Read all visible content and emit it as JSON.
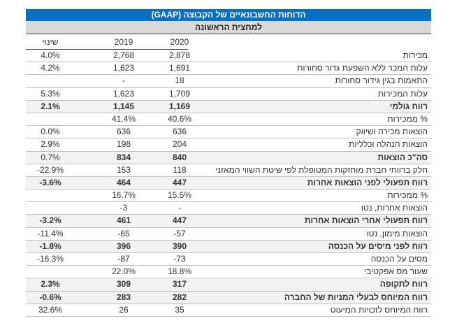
{
  "title": "הדוחות החשבונאיים של הקבוצה (GAAP)",
  "subtitle": "למחצית הראשונה",
  "columns": {
    "change": "שינוי",
    "y2019": "2019",
    "y2020": "2020"
  },
  "rows": [
    {
      "label": "מכירות",
      "y2020": "2,878",
      "y2019": "2,768",
      "change": "4.0%",
      "bold": false
    },
    {
      "label": "עלות המכר ללא השפעת גדור סחורות",
      "y2020": "1,691",
      "y2019": "1,623",
      "change": "4.2%",
      "bold": false
    },
    {
      "label": "התאמות בגין גידור סחורות",
      "y2020": "18",
      "y2019": "-",
      "change": "",
      "bold": false
    },
    {
      "label": "עלות המכירות",
      "y2020": "1,709",
      "y2019": "1,623",
      "change": "5.3%",
      "bold": false
    },
    {
      "label": "רווח גולמי",
      "y2020": "1,169",
      "y2019": "1,145",
      "change": "2.1%",
      "bold": true
    },
    {
      "label": "% ממכירות",
      "y2020": "40.6%",
      "y2019": "41.4%",
      "change": "",
      "bold": false
    },
    {
      "label": "הוצאות מכירה ושיווק",
      "y2020": "636",
      "y2019": "636",
      "change": "0.0%",
      "bold": false
    },
    {
      "label": "הוצאות הנהלה וכלליות",
      "y2020": "204",
      "y2019": "198",
      "change": "2.9%",
      "bold": false
    },
    {
      "label": "סה\"כ הוצאות",
      "y2020": "840",
      "y2019": "834",
      "change": "0.7%",
      "bold": true,
      "change_regular": true
    },
    {
      "label": "חלק ברווחי חברת מוחזקות המטופלת לפי שיטת השווי המאזני",
      "y2020": "118",
      "y2019": "153",
      "change": "-22.9%",
      "bold": false
    },
    {
      "label": "רווח תפעולי לפני הוצאות אחרות",
      "y2020": "447",
      "y2019": "464",
      "change": "-3.6%",
      "bold": true
    },
    {
      "label": "% ממכירות",
      "y2020": "15.5%",
      "y2019": "16.7%",
      "change": "",
      "bold": false
    },
    {
      "label": "הוצאות אחרות, נטו",
      "y2020": "-",
      "y2019": "-3",
      "change": "",
      "bold": false
    },
    {
      "label": "רווח תפעולי אחרי הוצאות אחרות",
      "y2020": "447",
      "y2019": "461",
      "change": "-3.2%",
      "bold": true
    },
    {
      "label": "הוצאות מימון, נטו",
      "y2020": "-57",
      "y2019": "-65",
      "change": "-11.4%",
      "bold": false
    },
    {
      "label": "רווח לפני מיסים על הכנסה",
      "y2020": "390",
      "y2019": "396",
      "change": "-1.8%",
      "bold": true
    },
    {
      "label": "מסים על הכנסה",
      "y2020": "-73",
      "y2019": "-87",
      "change": "-16.3%",
      "bold": false
    },
    {
      "label": "שעור מס אפקטיבי",
      "y2020": "18.8%",
      "y2019": "22.0%",
      "change": "",
      "bold": false
    },
    {
      "label": "רווח לתקופה",
      "y2020": "317",
      "y2019": "309",
      "change": "2.3%",
      "bold": true
    },
    {
      "label": "רווח המיוחס לבעלי המניות של החברה",
      "y2020": "282",
      "y2019": "283",
      "change": "-0.6%",
      "bold": true
    },
    {
      "label": "רווח המיוחס לזכויות המיעוט",
      "y2020": "35",
      "y2019": "26",
      "change": "32.6%",
      "bold": false
    }
  ],
  "colors": {
    "header_blue": "#0a6fc2",
    "subheader_gray": "#d9d9d9"
  }
}
